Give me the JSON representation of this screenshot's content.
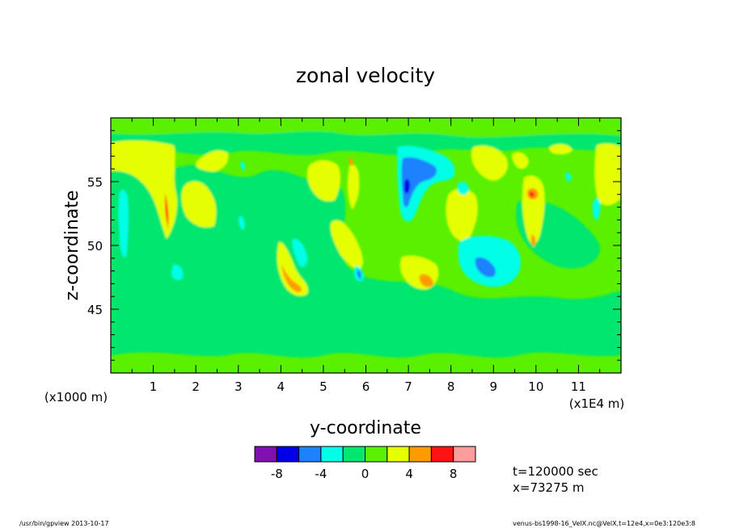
{
  "chart_data": {
    "type": "heatmap",
    "title": "zonal velocity",
    "xlabel": "y-coordinate",
    "ylabel": "z-coordinate",
    "x_unit_label": "(x1E4 m)",
    "y_unit_label": "(x1000 m)",
    "xlim": [
      0,
      12
    ],
    "ylim": [
      40,
      60
    ],
    "x_ticks": [
      1,
      2,
      3,
      4,
      5,
      6,
      7,
      8,
      9,
      10,
      11
    ],
    "x_tick_labels": [
      "1",
      "2",
      "3",
      "4",
      "5",
      "6",
      "7",
      "8",
      "9",
      "10",
      "11"
    ],
    "y_ticks": [
      45,
      50,
      55
    ],
    "y_tick_labels": [
      "45",
      "50",
      "55"
    ],
    "colorbar": {
      "bounds": [
        -10,
        -8,
        -6,
        -4,
        -2,
        0,
        2,
        4,
        6,
        8,
        10
      ],
      "colors": [
        "#8010b0",
        "#0000e6",
        "#1e82ff",
        "#00ffe6",
        "#00e66e",
        "#5af000",
        "#e6ff00",
        "#ff9b00",
        "#ff1414",
        "#ff9b9b"
      ],
      "tick_values": [
        -8,
        -4,
        0,
        4,
        8
      ],
      "tick_labels": [
        "-8",
        "-4",
        "0",
        "4",
        "8"
      ]
    },
    "features": [
      {
        "y": 0.9,
        "z": 56.5,
        "value": 5
      },
      {
        "y": 1.3,
        "z": 52.5,
        "value": 4
      },
      {
        "y": 2.3,
        "z": 55.5,
        "value": 4
      },
      {
        "y": 3.9,
        "z": 48.5,
        "value": 4
      },
      {
        "y": 4.3,
        "z": 47.3,
        "value": 7
      },
      {
        "y": 5.0,
        "z": 55.0,
        "value": 4
      },
      {
        "y": 5.8,
        "z": 49.5,
        "value": 4
      },
      {
        "y": 7.0,
        "z": 55.5,
        "value": -6
      },
      {
        "y": 7.5,
        "z": 47.7,
        "value": 4
      },
      {
        "y": 8.3,
        "z": 52.0,
        "value": 4
      },
      {
        "y": 9.0,
        "z": 48.5,
        "value": -3
      },
      {
        "y": 9.5,
        "z": 55.5,
        "value": 4
      },
      {
        "y": 10.0,
        "z": 52.0,
        "value": 6
      },
      {
        "y": 11.7,
        "z": 55.0,
        "value": 4
      }
    ]
  },
  "annotations": {
    "time": "t=120000 sec",
    "position": "x=73275 m"
  },
  "footer": {
    "left": "/usr/bin/gpview  2013-10-17",
    "right": "venus-bs1998-16_VelX.nc@VelX,t=12e4,x=0e3:120e3:8"
  }
}
